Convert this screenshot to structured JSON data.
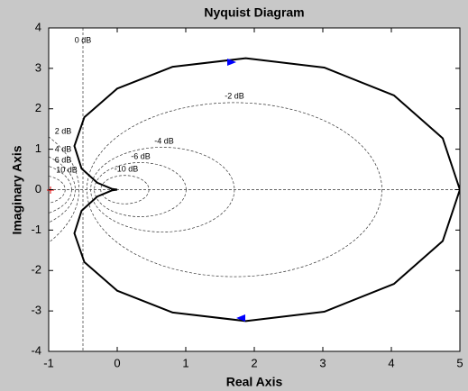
{
  "chart_data": {
    "type": "nyquist",
    "title": "Nyquist Diagram",
    "x_label": "Real Axis",
    "y_label": "Imaginary Axis",
    "xlim": [
      -1,
      5
    ],
    "ylim": [
      -4,
      4
    ],
    "xticks": [
      -1,
      0,
      1,
      2,
      3,
      4,
      5
    ],
    "yticks": [
      -4,
      -3,
      -2,
      -1,
      0,
      1,
      2,
      3,
      4
    ],
    "grid": true,
    "grid_db": [
      {
        "value": 0,
        "label": "0 dB"
      },
      {
        "value": -2,
        "label": "-2 dB"
      },
      {
        "value": -4,
        "label": "-4 dB"
      },
      {
        "value": -6,
        "label": "-6 dB"
      },
      {
        "value": -10,
        "label": "-10 dB"
      },
      {
        "value": 2,
        "label": "2 dB"
      },
      {
        "value": 4,
        "label": "4 dB"
      },
      {
        "value": 6,
        "label": "6 dB"
      },
      {
        "value": 10,
        "label": "10 dB"
      }
    ],
    "series": [
      {
        "color": "#000000",
        "x": [
          5,
          4.75,
          4.04,
          3.02,
          1.875,
          0.81,
          0,
          -0.48,
          -0.625,
          -0.52,
          -0.29,
          -0.08,
          0
        ],
        "y": [
          0,
          -1.27,
          -2.33,
          -3.02,
          -3.25,
          -3.04,
          -2.5,
          -1.79,
          -1.08,
          -0.52,
          -0.17,
          -0.02,
          0
        ]
      },
      {
        "color": "#000000",
        "x": [
          5,
          4.75,
          4.04,
          3.02,
          1.875,
          0.81,
          0,
          -0.48,
          -0.625,
          -0.52,
          -0.29,
          -0.08,
          0
        ],
        "y": [
          0,
          1.27,
          2.33,
          3.02,
          3.25,
          3.04,
          2.5,
          1.79,
          1.08,
          0.52,
          0.17,
          0.02,
          0
        ]
      }
    ]
  }
}
